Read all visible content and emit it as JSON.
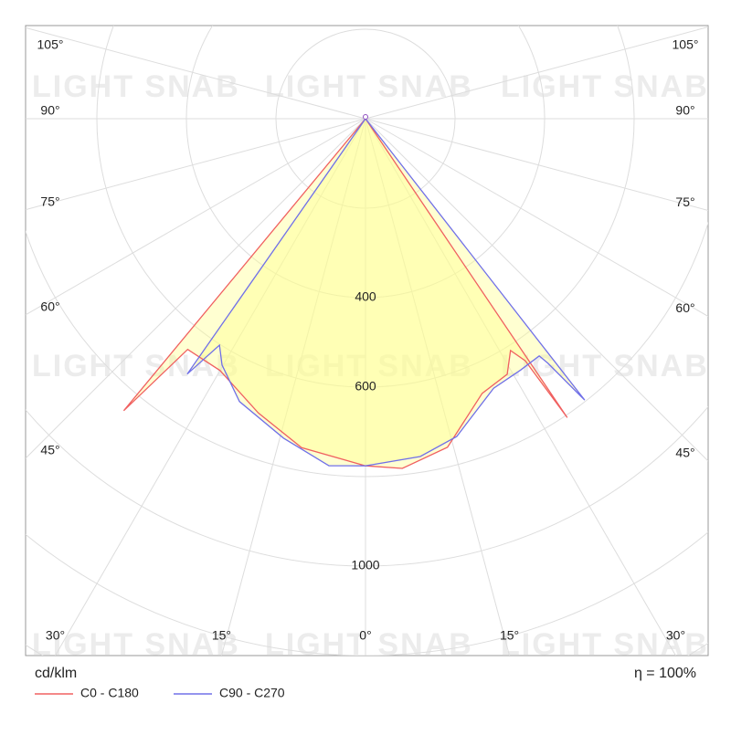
{
  "chart_data": {
    "type": "polar",
    "watermark": "LIGHT SNAB",
    "unit_label": "cd/klm",
    "efficiency": "η = 100%",
    "rlim": [
      0,
      1500
    ],
    "rticks": [
      {
        "value": 200,
        "label": null
      },
      {
        "value": 400,
        "label": "400"
      },
      {
        "value": 600,
        "label": "600"
      },
      {
        "value": 800,
        "label": null
      },
      {
        "value": 1000,
        "label": "1000"
      },
      {
        "value": 1200,
        "label": null
      },
      {
        "value": 1400,
        "label": null
      }
    ],
    "angle_ticks": [
      {
        "value": 0,
        "label": "0°"
      },
      {
        "value": 15,
        "label": "15°"
      },
      {
        "value": 30,
        "label": "30°"
      },
      {
        "value": 45,
        "label": "45°"
      },
      {
        "value": 60,
        "label": "60°"
      },
      {
        "value": 75,
        "label": "75°"
      },
      {
        "value": 90,
        "label": "90°"
      },
      {
        "value": 105,
        "label": "105°"
      }
    ],
    "series": [
      {
        "name": "C0 - C180",
        "color": "#f06060",
        "angles": [
          -90,
          -39.6,
          -37.6,
          -30,
          -20,
          -11,
          0,
          6,
          14,
          23,
          29,
          32,
          33.4,
          34,
          90
        ],
        "values": [
          0,
          847,
          651,
          650,
          700,
          749,
          776,
          786,
          757,
          667,
          653,
          611,
          648,
          806,
          0
        ]
      },
      {
        "name": "C90 - C270",
        "color": "#7070e8",
        "angles": [
          -90,
          -34.9,
          -32.8,
          -30.2,
          -24,
          -14.4,
          -6,
          0,
          9.2,
          16,
          25.4,
          31.7,
          36.2,
          36.7,
          37.9,
          90
        ],
        "values": [
          0,
          696,
          602,
          637,
          692,
          737,
          780,
          776,
          765,
          739,
          667,
          660,
          657,
          682,
          797,
          0
        ]
      }
    ]
  }
}
